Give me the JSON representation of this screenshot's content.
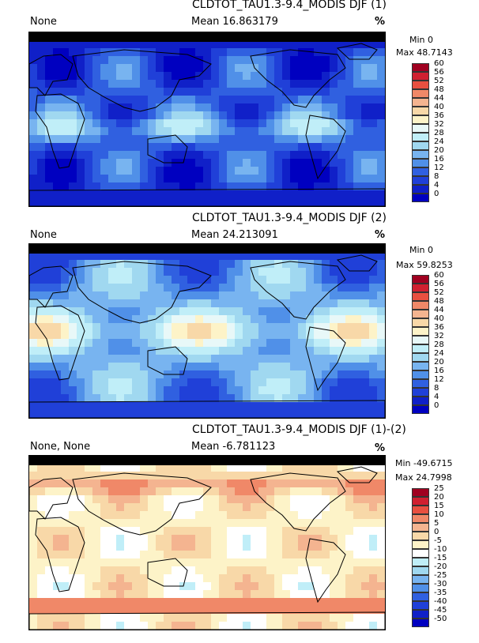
{
  "panels": [
    {
      "title": "CLDTOT_TAU1.3-9.4_MODIS DJF (1)",
      "left_label": "None",
      "mean": "Mean 16.863179",
      "units": "%",
      "min": "Min 0",
      "max": "Max 48.7143",
      "colorbar_ticks": [
        "60",
        "56",
        "52",
        "48",
        "44",
        "40",
        "36",
        "32",
        "28",
        "24",
        "20",
        "16",
        "12",
        "8",
        "4",
        "0"
      ],
      "colors": [
        "#a00020",
        "#d02030",
        "#e85040",
        "#f08868",
        "#f4b490",
        "#f8d8a8",
        "#fdf3c8",
        "#e8f8f8",
        "#c0eef8",
        "#a0d8f0",
        "#78b4f0",
        "#5090e8",
        "#3060e0",
        "#2040d8",
        "#1020c8",
        "#0000c0"
      ],
      "regime": "low"
    },
    {
      "title": "CLDTOT_TAU1.3-9.4_MODIS DJF (2)",
      "left_label": "None",
      "mean": "Mean 24.213091",
      "units": "%",
      "min": "Min 0",
      "max": "Max 59.8253",
      "colorbar_ticks": [
        "60",
        "56",
        "52",
        "48",
        "44",
        "40",
        "36",
        "32",
        "28",
        "24",
        "20",
        "16",
        "12",
        "8",
        "4",
        "0"
      ],
      "colors": [
        "#a00020",
        "#d02030",
        "#e85040",
        "#f08868",
        "#f4b490",
        "#f8d8a8",
        "#fdf3c8",
        "#e8f8f8",
        "#c0eef8",
        "#a0d8f0",
        "#78b4f0",
        "#5090e8",
        "#3060e0",
        "#2040d8",
        "#1020c8",
        "#0000c0"
      ],
      "regime": "mid"
    },
    {
      "title": "CLDTOT_TAU1.3-9.4_MODIS DJF (1)-(2)",
      "left_label": "None, None",
      "mean": "Mean -6.781123",
      "units": "%",
      "min": "Min -49.6715",
      "max": "Max 24.7998",
      "colorbar_ticks": [
        "25",
        "20",
        "15",
        "10",
        "5",
        "0",
        "-5",
        "-10",
        "-15",
        "-20",
        "-25",
        "-30",
        "-35",
        "-40",
        "-45",
        "-50"
      ],
      "colors": [
        "#a00020",
        "#d02030",
        "#e85040",
        "#f08868",
        "#f4b490",
        "#f8d8a8",
        "#fdf3c8",
        "#ffffff",
        "#c0eef8",
        "#a0d8f0",
        "#78b4f0",
        "#5090e8",
        "#3060e0",
        "#2040d8",
        "#1020c8",
        "#0000c0"
      ],
      "regime": "diff"
    }
  ]
}
